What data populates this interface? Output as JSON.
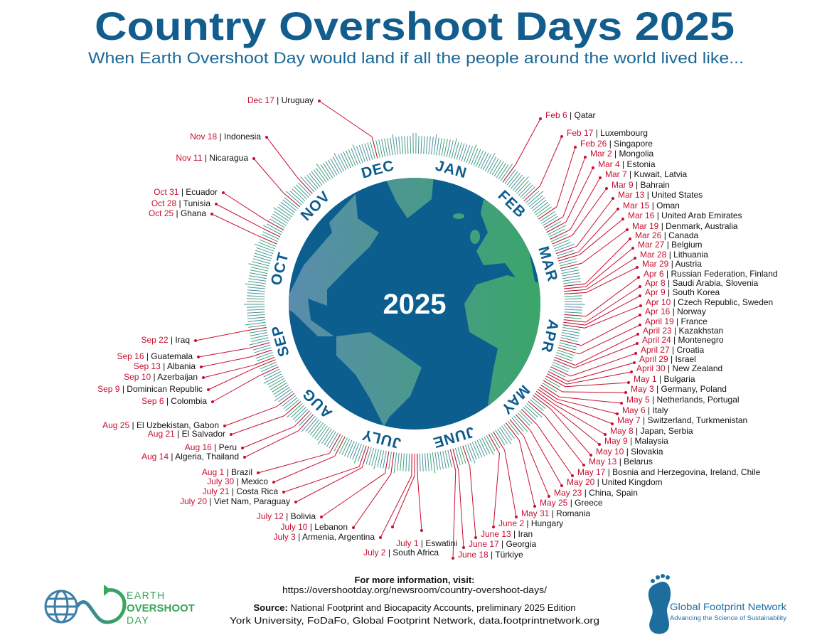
{
  "header": {
    "title": "Country Overshoot Days 2025",
    "subtitle": "When Earth Overshoot Day would land if all the people around the world lived like..."
  },
  "center_year": "2025",
  "months": [
    "JAN",
    "FEB",
    "MAR",
    "APR",
    "MAY",
    "JUNE",
    "JULY",
    "AUG",
    "SEP",
    "OCT",
    "NOV",
    "DEC"
  ],
  "colors": {
    "title": "#125d8e",
    "date": "#c8102e",
    "ocean": "#0b5e8e",
    "land_left": "#5a8cae",
    "land_right": "#3aa66a",
    "tick_blue": "#4a8fa8",
    "tick_green": "#3ca36f"
  },
  "right_labels": [
    {
      "date": "Feb 6",
      "country": "Qatar"
    },
    {
      "date": "Feb 17",
      "country": "Luxembourg"
    },
    {
      "date": "Feb 26",
      "country": "Singapore"
    },
    {
      "date": "Mar 2",
      "country": "Mongolia"
    },
    {
      "date": "Mar 4",
      "country": "Estonia"
    },
    {
      "date": "Mar 7",
      "country": "Kuwait, Latvia"
    },
    {
      "date": "Mar 9",
      "country": "Bahrain"
    },
    {
      "date": "Mar 13",
      "country": "United States"
    },
    {
      "date": "Mar 15",
      "country": "Oman"
    },
    {
      "date": "Mar 16",
      "country": "United Arab Emirates"
    },
    {
      "date": "Mar 19",
      "country": "Denmark, Australia"
    },
    {
      "date": "Mar 26",
      "country": "Canada"
    },
    {
      "date": "Mar 27",
      "country": "Belgium"
    },
    {
      "date": "Mar 28",
      "country": "Lithuania"
    },
    {
      "date": "Mar 29",
      "country": "Austria"
    },
    {
      "date": "Apr 6",
      "country": "Russian Federation, Finland"
    },
    {
      "date": "Apr 8",
      "country": "Saudi Arabia, Slovenia"
    },
    {
      "date": "Apr 9",
      "country": "South Korea"
    },
    {
      "date": "Apr 10",
      "country": "Czech Republic, Sweden"
    },
    {
      "date": "Apr 16",
      "country": "Norway"
    },
    {
      "date": "April 19",
      "country": "France"
    },
    {
      "date": "April 23",
      "country": "Kazakhstan"
    },
    {
      "date": "April 24",
      "country": "Montenegro"
    },
    {
      "date": "April 27",
      "country": "Croatia"
    },
    {
      "date": "April 29",
      "country": "Israel"
    },
    {
      "date": "April 30",
      "country": "New Zealand"
    },
    {
      "date": "May 1",
      "country": "Bulgaria"
    },
    {
      "date": "May 3",
      "country": "Germany, Poland"
    },
    {
      "date": "May 5",
      "country": "Netherlands, Portugal"
    },
    {
      "date": "May 6",
      "country": "Italy"
    },
    {
      "date": "May 7",
      "country": "Switzerland, Turkmenistan"
    },
    {
      "date": "May 8",
      "country": "Japan, Serbia"
    },
    {
      "date": "May 9",
      "country": "Malaysia"
    },
    {
      "date": "May 10",
      "country": "Slovakia"
    },
    {
      "date": "May 13",
      "country": "Belarus"
    },
    {
      "date": "May 17",
      "country": "Bosnia and Herzegovina, Ireland, Chile"
    },
    {
      "date": "May 20",
      "country": "United Kingdom"
    },
    {
      "date": "May 23",
      "country": "China, Spain"
    },
    {
      "date": "May 25",
      "country": "Greece"
    },
    {
      "date": "May 31",
      "country": "Romania"
    },
    {
      "date": "June 2",
      "country": "Hungary"
    },
    {
      "date": "June 13",
      "country": "Iran"
    },
    {
      "date": "June 17",
      "country": "Georgia"
    },
    {
      "date": "June 18",
      "country": "Türkiye"
    }
  ],
  "left_labels": [
    {
      "date": "Dec 17",
      "country": "Uruguay"
    },
    {
      "date": "Nov 18",
      "country": "Indonesia"
    },
    {
      "date": "Nov 11",
      "country": "Nicaragua"
    },
    {
      "date": "Oct 31",
      "country": "Ecuador"
    },
    {
      "date": "Oct 28",
      "country": "Tunisia"
    },
    {
      "date": "Oct 25",
      "country": "Ghana"
    },
    {
      "date": "Sep 22",
      "country": "Iraq"
    },
    {
      "date": "Sep 16",
      "country": "Guatemala"
    },
    {
      "date": "Sep 13",
      "country": "Albania"
    },
    {
      "date": "Sep 10",
      "country": "Azerbaijan"
    },
    {
      "date": "Sep 9",
      "country": "Dominican Republic"
    },
    {
      "date": "Sep 6",
      "country": "Colombia"
    },
    {
      "date": "Aug 25",
      "country": "El Uzbekistan, Gabon"
    },
    {
      "date": "Aug 21",
      "country": "El Salvador"
    },
    {
      "date": "Aug 16",
      "country": "Peru"
    },
    {
      "date": "Aug 14",
      "country": "Algeria, Thailand"
    },
    {
      "date": "Aug 1",
      "country": "Brazil"
    },
    {
      "date": "July 30",
      "country": "Mexico"
    },
    {
      "date": "July 21",
      "country": "Costa Rica"
    },
    {
      "date": "July 20",
      "country": "Viet Nam, Paraguay"
    },
    {
      "date": "July 12",
      "country": "Bolivia"
    },
    {
      "date": "July 10",
      "country": "Lebanon"
    },
    {
      "date": "July 3",
      "country": "Armenia, Argentina"
    },
    {
      "date": "July 1",
      "country": "Eswatini"
    },
    {
      "date": "July 2",
      "country": "South Africa"
    }
  ],
  "footer": {
    "more_info": "For more information, visit:",
    "url": "https://overshootday.org/newsroom/country-overshoot-days/",
    "source_label": "Source:",
    "source_text": "National Footprint and Biocapacity Accounts, preliminary 2025 Edition",
    "source_line2": "York University, FoDaFo, Global Footprint Network, data.footprintnetwork.org",
    "eod_logo": {
      "line1": "EARTH",
      "line2": "OVERSHOOT",
      "line3": "DAY"
    },
    "gfn_logo": {
      "name": "Global Footprint Network",
      "tagline": "Advancing the Science of Sustainability"
    }
  }
}
